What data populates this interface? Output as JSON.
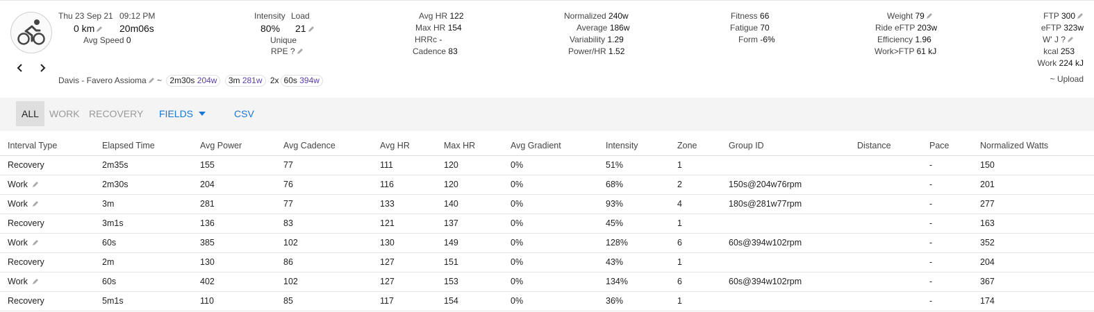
{
  "activity": {
    "date": "Thu 23 Sep 21",
    "time": "09:12 PM",
    "distance": "0 km",
    "duration": "20m06s",
    "avg_speed_label": "Avg Speed",
    "avg_speed_value": "0",
    "gear": "Davis - Favero Assioma",
    "tilde": "~",
    "repeat_label": "2x",
    "best_efforts": [
      {
        "duration": "2m30s",
        "watts": "204w"
      },
      {
        "duration": "3m",
        "watts": "281w"
      },
      {
        "duration": "60s",
        "watts": "394w"
      }
    ]
  },
  "intensity": {
    "intensity_label": "Intensity",
    "load_label": "Load",
    "intensity_value": "80%",
    "load_value": "21",
    "unique_label": "Unique",
    "rpe_label": "RPE ?"
  },
  "hr": {
    "rows": [
      {
        "label": "Avg HR",
        "value": "122"
      },
      {
        "label": "Max HR",
        "value": "154"
      },
      {
        "label": "HRRc",
        "value": "-"
      },
      {
        "label": "Cadence",
        "value": "83"
      }
    ]
  },
  "power": {
    "rows": [
      {
        "label": "Normalized",
        "value": "240w"
      },
      {
        "label": "Average",
        "value": "186w"
      },
      {
        "label": "Variability",
        "value": "1.29"
      },
      {
        "label": "Power/HR",
        "value": "1.52"
      }
    ]
  },
  "fitness": {
    "rows": [
      {
        "label": "Fitness",
        "value": "66"
      },
      {
        "label": "Fatigue",
        "value": "70"
      },
      {
        "label": "Form",
        "value": "-6%"
      }
    ]
  },
  "athlete": {
    "rows": [
      {
        "label": "Weight",
        "value": "79"
      },
      {
        "label": "Ride eFTP",
        "value": "203w"
      },
      {
        "label": "Efficiency",
        "value": "1.96"
      },
      {
        "label": "Work>FTP",
        "value": "61 kJ"
      }
    ]
  },
  "ftp": {
    "rows": [
      {
        "label": "FTP",
        "value": "300"
      },
      {
        "label": "eFTP",
        "value": "323w"
      },
      {
        "label": "W' J ?",
        "value": ""
      },
      {
        "label": "kcal",
        "value": "253"
      },
      {
        "label": "Work",
        "value": "224 kJ"
      }
    ],
    "upload_label": "~ Upload"
  },
  "toolbar": {
    "tab_all": "ALL",
    "tab_work": "WORK",
    "tab_recovery": "RECOVERY",
    "fields_label": "FIELDS",
    "csv_label": "CSV"
  },
  "table": {
    "columns": [
      "Interval Type",
      "Elapsed Time",
      "Avg Power",
      "Avg Cadence",
      "Avg HR",
      "Max HR",
      "Avg Gradient",
      "Intensity",
      "Zone",
      "Group ID",
      "Distance",
      "Pace",
      "Normalized Watts"
    ],
    "rows": [
      [
        "Recovery",
        "2m35s",
        "155",
        "77",
        "111",
        "120",
        "0%",
        "51%",
        "1",
        "",
        "",
        "-",
        "150"
      ],
      [
        "Work",
        "2m30s",
        "204",
        "76",
        "116",
        "120",
        "0%",
        "68%",
        "2",
        "150s@204w76rpm",
        "",
        "-",
        "201"
      ],
      [
        "Work",
        "3m",
        "281",
        "77",
        "133",
        "140",
        "0%",
        "93%",
        "4",
        "180s@281w77rpm",
        "",
        "-",
        "277"
      ],
      [
        "Recovery",
        "3m1s",
        "136",
        "83",
        "121",
        "137",
        "0%",
        "45%",
        "1",
        "",
        "",
        "-",
        "163"
      ],
      [
        "Work",
        "60s",
        "385",
        "102",
        "130",
        "149",
        "0%",
        "128%",
        "6",
        "60s@394w102rpm",
        "",
        "-",
        "352"
      ],
      [
        "Recovery",
        "2m",
        "130",
        "86",
        "127",
        "151",
        "0%",
        "43%",
        "1",
        "",
        "",
        "-",
        "204"
      ],
      [
        "Work",
        "60s",
        "402",
        "102",
        "127",
        "153",
        "0%",
        "134%",
        "6",
        "60s@394w102rpm",
        "",
        "-",
        "367"
      ],
      [
        "Recovery",
        "5m1s",
        "110",
        "85",
        "117",
        "154",
        "0%",
        "36%",
        "1",
        "",
        "",
        "-",
        "174"
      ]
    ]
  },
  "icons": {
    "avatar": "bicycle-rider-icon",
    "prev": "chevron-left-icon",
    "next": "chevron-right-icon",
    "edit": "pencil-icon",
    "fields_dropdown": "caret-down-icon"
  },
  "colors": {
    "accent": "#1976d2",
    "watts": "#5b3fa8"
  }
}
